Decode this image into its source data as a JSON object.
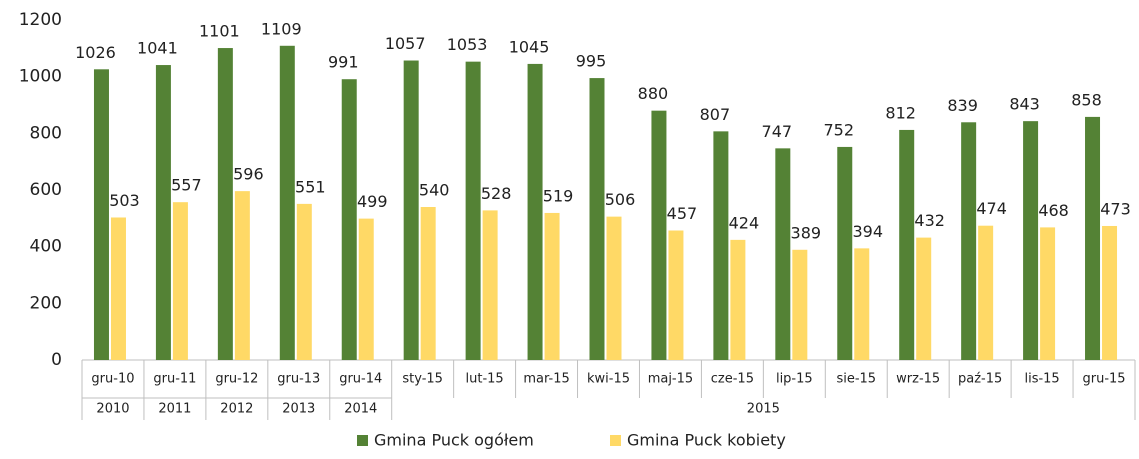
{
  "chart_data": {
    "type": "bar",
    "categories": [
      "gru-10",
      "gru-11",
      "gru-12",
      "gru-13",
      "gru-14",
      "sty-15",
      "lut-15",
      "mar-15",
      "kwi-15",
      "maj-15",
      "cze-15",
      "lip-15",
      "sie-15",
      "wrz-15",
      "paź-15",
      "lis-15",
      "gru-15"
    ],
    "groups": [
      {
        "label": "2010",
        "count": 1
      },
      {
        "label": "2011",
        "count": 1
      },
      {
        "label": "2012",
        "count": 1
      },
      {
        "label": "2013",
        "count": 1
      },
      {
        "label": "2014",
        "count": 1
      },
      {
        "label": "2015",
        "count": 12
      }
    ],
    "series": [
      {
        "name": "Gmina Puck ogółem",
        "color": "#548235",
        "values": [
          1026,
          1041,
          1101,
          1109,
          991,
          1057,
          1053,
          1045,
          995,
          880,
          807,
          747,
          752,
          812,
          839,
          843,
          858
        ]
      },
      {
        "name": "Gmina Puck kobiety",
        "color": "#ffd966",
        "values": [
          503,
          557,
          596,
          551,
          499,
          540,
          528,
          519,
          506,
          457,
          424,
          389,
          394,
          432,
          474,
          468,
          473
        ]
      }
    ],
    "ylim": [
      0,
      1200
    ],
    "yticks": [
      0,
      200,
      400,
      600,
      800,
      1000,
      1200
    ],
    "grid": false,
    "legend": "bottom"
  }
}
